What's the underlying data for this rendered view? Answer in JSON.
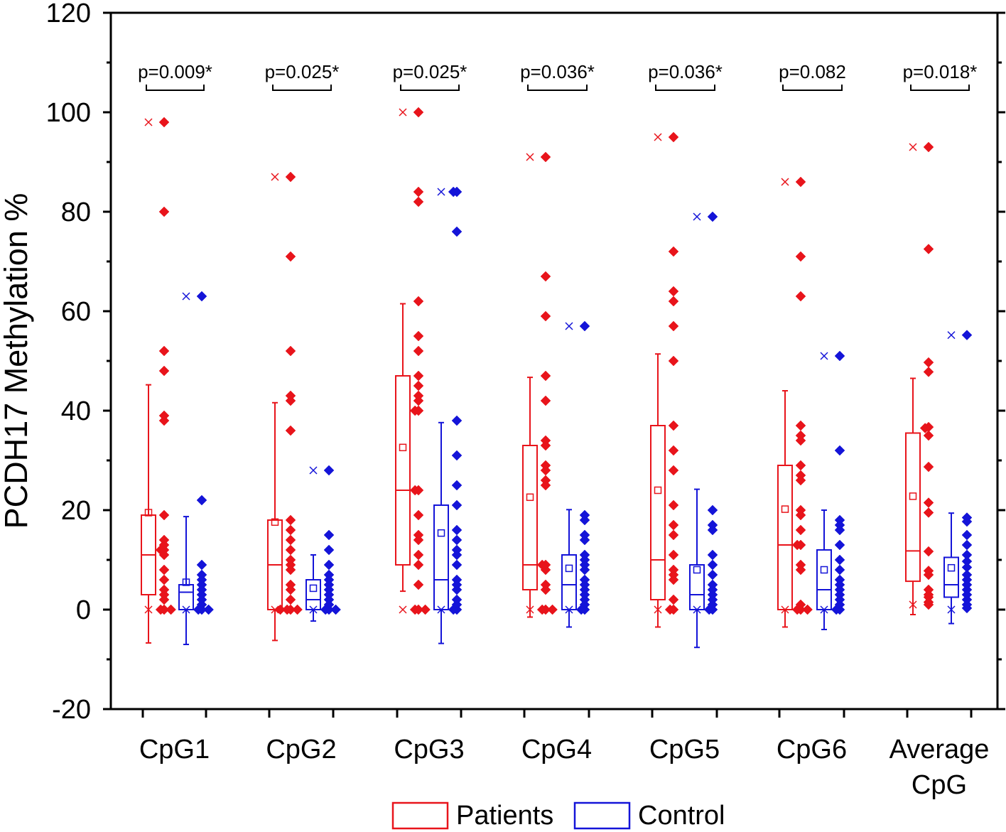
{
  "chart_data": {
    "type": "box",
    "ylabel": "PCDH17 Methylation %",
    "xlabel": "",
    "ylim": [
      -20,
      120
    ],
    "yticks": [
      "-20",
      "0",
      "20",
      "40",
      "60",
      "80",
      "100",
      "120"
    ],
    "ytick_values": [
      -20,
      0,
      20,
      40,
      60,
      80,
      100,
      120
    ],
    "categories": [
      {
        "lines": [
          "CpG1"
        ]
      },
      {
        "lines": [
          "CpG2"
        ]
      },
      {
        "lines": [
          "CpG3"
        ]
      },
      {
        "lines": [
          "CpG4"
        ]
      },
      {
        "lines": [
          "CpG5"
        ]
      },
      {
        "lines": [
          "CpG6"
        ]
      },
      {
        "lines": [
          "Average",
          "CpG"
        ]
      }
    ],
    "pvalues": [
      "p=0.009*",
      "p=0.025*",
      "p=0.025*",
      "p=0.036*",
      "p=0.036*",
      "p=0.082",
      "p=0.018*"
    ],
    "legend": {
      "position": "bottom-center",
      "entries": [
        "Patients",
        "Control"
      ]
    },
    "colors": {
      "patients": "#e8141b",
      "control": "#1414d8",
      "axis": "#000000"
    },
    "series": [
      {
        "name": "Patients",
        "boxes": [
          {
            "q1": 3,
            "median": 11,
            "q3": 19,
            "mean": 19.5,
            "wlo": -6.7,
            "whi": 45.2,
            "min": 0,
            "max": 98,
            "points": [
              98,
              80,
              52,
              48,
              39,
              38,
              19,
              14,
              13,
              12,
              12,
              11,
              8,
              6,
              4,
              3,
              2,
              0,
              0,
              0
            ]
          },
          {
            "q1": 0,
            "median": 9,
            "q3": 18,
            "mean": 17.6,
            "wlo": -6.2,
            "whi": 41.6,
            "min": 0,
            "max": 87,
            "points": [
              87,
              71,
              52,
              43,
              42,
              36,
              18,
              16,
              14,
              12,
              10,
              9,
              8,
              5,
              4,
              2,
              0,
              0,
              0,
              0
            ]
          },
          {
            "q1": 9,
            "median": 24,
            "q3": 47,
            "mean": 32.6,
            "wlo": 3.7,
            "whi": 61.5,
            "min": 0,
            "max": 100,
            "points": [
              100,
              84,
              82,
              62,
              55,
              52,
              47,
              45,
              43,
              42,
              40,
              40,
              24,
              24,
              19,
              15,
              14,
              11,
              9,
              5,
              0,
              0,
              0
            ]
          },
          {
            "q1": 4,
            "median": 9,
            "q3": 33,
            "mean": 22.6,
            "wlo": -1.5,
            "whi": 46.7,
            "min": 0,
            "max": 91,
            "points": [
              91,
              67,
              59,
              47,
              42,
              34,
              33,
              29,
              28,
              26,
              25,
              9,
              9,
              8,
              5,
              4,
              0,
              0,
              0
            ]
          },
          {
            "q1": 2,
            "median": 10,
            "q3": 37,
            "mean": 24,
            "wlo": -3.5,
            "whi": 51.4,
            "min": 0,
            "max": 95,
            "points": [
              95,
              72,
              64,
              62,
              57,
              50,
              37,
              32,
              28,
              21,
              17,
              15,
              11,
              8,
              7,
              6,
              2,
              0,
              0
            ]
          },
          {
            "q1": 0,
            "median": 13,
            "q3": 29,
            "mean": 20.2,
            "wlo": -3.5,
            "whi": 44,
            "min": 0,
            "max": 86,
            "points": [
              86,
              71,
              63,
              37,
              35,
              34,
              29,
              27,
              26,
              20,
              19,
              16,
              13,
              13,
              9,
              8,
              1,
              0,
              0,
              0
            ]
          },
          {
            "q1": 5.7,
            "median": 11.8,
            "q3": 35.5,
            "mean": 22.8,
            "wlo": -1,
            "whi": 46.5,
            "min": 1,
            "max": 93,
            "points": [
              93,
              72.5,
              49.7,
              47.8,
              36.7,
              36.5,
              35,
              28.7,
              21.5,
              19.5,
              11.7,
              7.8,
              7,
              4,
              3,
              2.5,
              1.5,
              1
            ]
          }
        ]
      },
      {
        "name": "Control",
        "boxes": [
          {
            "q1": 0,
            "median": 3.5,
            "q3": 5,
            "mean": 5.5,
            "wlo": -7,
            "whi": 18.7,
            "min": 0,
            "max": 63,
            "points": [
              63,
              22,
              9,
              7,
              6,
              5,
              4,
              3,
              2,
              1,
              0,
              0,
              0
            ]
          },
          {
            "q1": 0,
            "median": 2,
            "q3": 6,
            "mean": 4.3,
            "wlo": -2.3,
            "whi": 11,
            "min": 0,
            "max": 28,
            "points": [
              28,
              15,
              12,
              9,
              7,
              6,
              5,
              4,
              3,
              2,
              1,
              0,
              0,
              0
            ]
          },
          {
            "q1": 0,
            "median": 6,
            "q3": 21,
            "mean": 15.4,
            "wlo": -6.8,
            "whi": 37.6,
            "min": 0,
            "max": 84,
            "points": [
              84,
              84,
              76,
              38,
              31,
              25,
              21,
              16,
              14,
              12,
              11,
              9,
              6,
              5,
              4,
              2,
              1,
              0,
              0
            ]
          },
          {
            "q1": 0,
            "median": 5,
            "q3": 11,
            "mean": 8.3,
            "wlo": -3.5,
            "whi": 20.1,
            "min": 0,
            "max": 57,
            "points": [
              57,
              19,
              18,
              15,
              14,
              11,
              10,
              9,
              8,
              6,
              5,
              4,
              3,
              2,
              1,
              0,
              0
            ]
          },
          {
            "q1": 0,
            "median": 3,
            "q3": 9,
            "mean": 8,
            "wlo": -7.6,
            "whi": 24.2,
            "min": 0,
            "max": 79,
            "points": [
              79,
              20,
              17,
              16,
              11,
              9,
              7,
              5,
              4,
              3,
              2,
              1,
              0,
              0
            ]
          },
          {
            "q1": 0,
            "median": 4,
            "q3": 12,
            "mean": 8,
            "wlo": -4,
            "whi": 20,
            "min": 0,
            "max": 51,
            "points": [
              51,
              32,
              18,
              17,
              16,
              13,
              10,
              8,
              6,
              5,
              4,
              3,
              2,
              1,
              0,
              0
            ]
          },
          {
            "q1": 2.5,
            "median": 5,
            "q3": 10.5,
            "mean": 8.4,
            "wlo": -2.8,
            "whi": 19.4,
            "min": 0,
            "max": 55.2,
            "points": [
              55.2,
              18.5,
              17.7,
              15,
              13,
              11,
              9.7,
              8.5,
              7,
              6,
              5,
              4,
              3,
              2,
              1,
              0.3
            ]
          }
        ]
      }
    ]
  }
}
